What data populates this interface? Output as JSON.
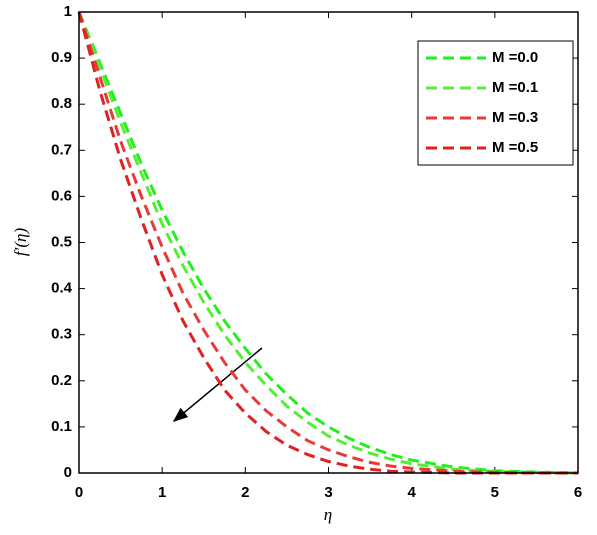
{
  "chart_data": {
    "type": "line",
    "x": [
      0,
      0.25,
      0.5,
      0.75,
      1,
      1.25,
      1.5,
      1.75,
      2,
      2.25,
      2.5,
      2.75,
      3,
      3.25,
      3.5,
      3.75,
      4,
      4.5,
      5,
      5.5,
      6
    ],
    "series": [
      {
        "name": "M =0.0",
        "color": "#22ee22",
        "values": [
          1,
          0.89,
          0.78,
          0.67,
          0.57,
          0.48,
          0.4,
          0.33,
          0.27,
          0.215,
          0.17,
          0.13,
          0.1,
          0.075,
          0.055,
          0.04,
          0.028,
          0.013,
          0.005,
          0.002,
          0
        ]
      },
      {
        "name": "M =0.1",
        "color": "#55ee33",
        "values": [
          1,
          0.88,
          0.76,
          0.65,
          0.54,
          0.45,
          0.37,
          0.3,
          0.24,
          0.19,
          0.145,
          0.11,
          0.08,
          0.06,
          0.043,
          0.03,
          0.02,
          0.008,
          0.003,
          0.001,
          0
        ]
      },
      {
        "name": "M =0.3",
        "color": "#e83a3a",
        "values": [
          1,
          0.86,
          0.72,
          0.6,
          0.49,
          0.39,
          0.31,
          0.24,
          0.18,
          0.135,
          0.1,
          0.07,
          0.05,
          0.035,
          0.023,
          0.015,
          0.01,
          0.004,
          0.001,
          0,
          0
        ]
      },
      {
        "name": "M =0.5",
        "color": "#dd2222",
        "values": [
          1,
          0.83,
          0.68,
          0.55,
          0.43,
          0.33,
          0.25,
          0.18,
          0.13,
          0.09,
          0.06,
          0.04,
          0.025,
          0.015,
          0.008,
          0.004,
          0.002,
          0,
          0,
          0,
          0
        ]
      }
    ],
    "x_label": "η",
    "y_label": "f′(η)",
    "xlim": [
      0,
      6
    ],
    "ylim": [
      0,
      1
    ],
    "xticks": [
      0,
      1,
      2,
      3,
      4,
      5,
      6
    ],
    "yticks": [
      0,
      0.1,
      0.2,
      0.3,
      0.4,
      0.5,
      0.6,
      0.7,
      0.8,
      0.9,
      1
    ],
    "legend": "upper right"
  }
}
